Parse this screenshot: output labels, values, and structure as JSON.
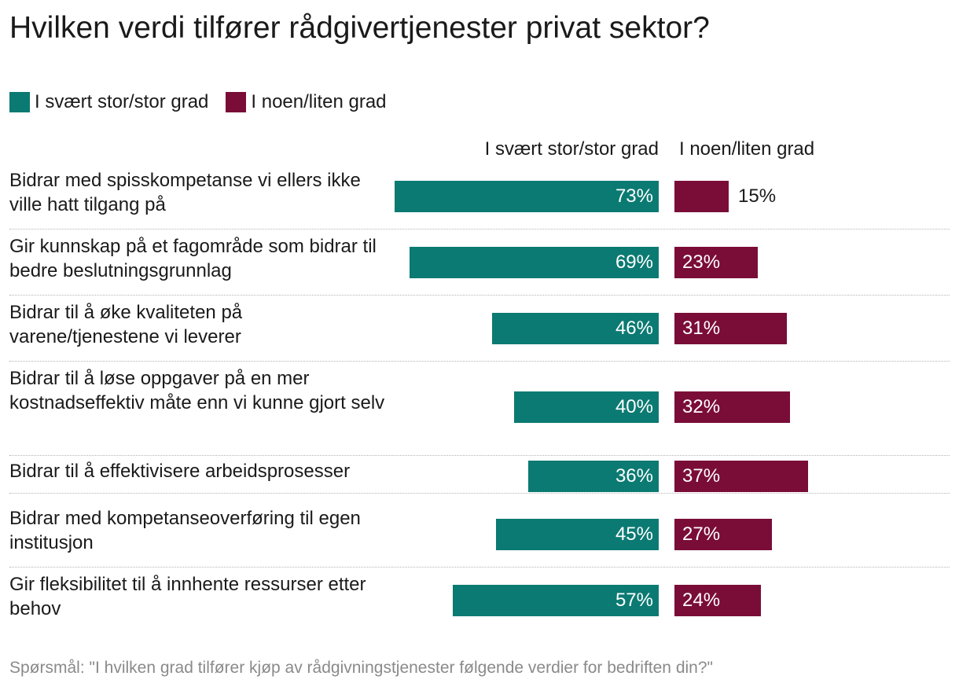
{
  "chart_data": {
    "type": "bar",
    "orientation": "horizontal-diverging",
    "title": "Hvilken verdi tilfører rådgivertjenester privat sektor?",
    "series": [
      {
        "name": "I svært stor/stor grad",
        "color": "#0b7a72",
        "values": [
          73,
          69,
          46,
          40,
          36,
          45,
          57
        ],
        "labels": [
          "73%",
          "69%",
          "46%",
          "40%",
          "36%",
          "45%",
          "57%"
        ]
      },
      {
        "name": "I noen/liten grad",
        "color": "#7a0d38",
        "values": [
          15,
          23,
          31,
          32,
          37,
          27,
          24
        ],
        "labels": [
          "15%",
          "23%",
          "31%",
          "32%",
          "37%",
          "27%",
          "24%"
        ]
      }
    ],
    "categories": [
      "Bidrar med spisskompetanse vi ellers ikke ville hatt tilgang på",
      "Gir kunnskap på et fagområde som bidrar til bedre beslutningsgrunnlag",
      "Bidrar til å øke kvaliteten på varene/tjenestene vi leverer",
      "Bidrar til å løse oppgaver på en mer kostnadseffektiv måte enn vi kunne gjort selv",
      "Bidrar til å effektivisere arbeidsprosesser",
      "Bidrar med kompetanseoverføring til egen institusjon",
      "Gir fleksibilitet til å innhente ressurser etter behov"
    ],
    "column_headers": [
      "I svært stor/stor grad",
      "I noen/liten grad"
    ],
    "legend_position": "top-left",
    "footnote": "Spørsmål: \"I hvilken grad tilfører kjøp av rådgivningstjenester følgende verdier for bedriften din?\""
  }
}
